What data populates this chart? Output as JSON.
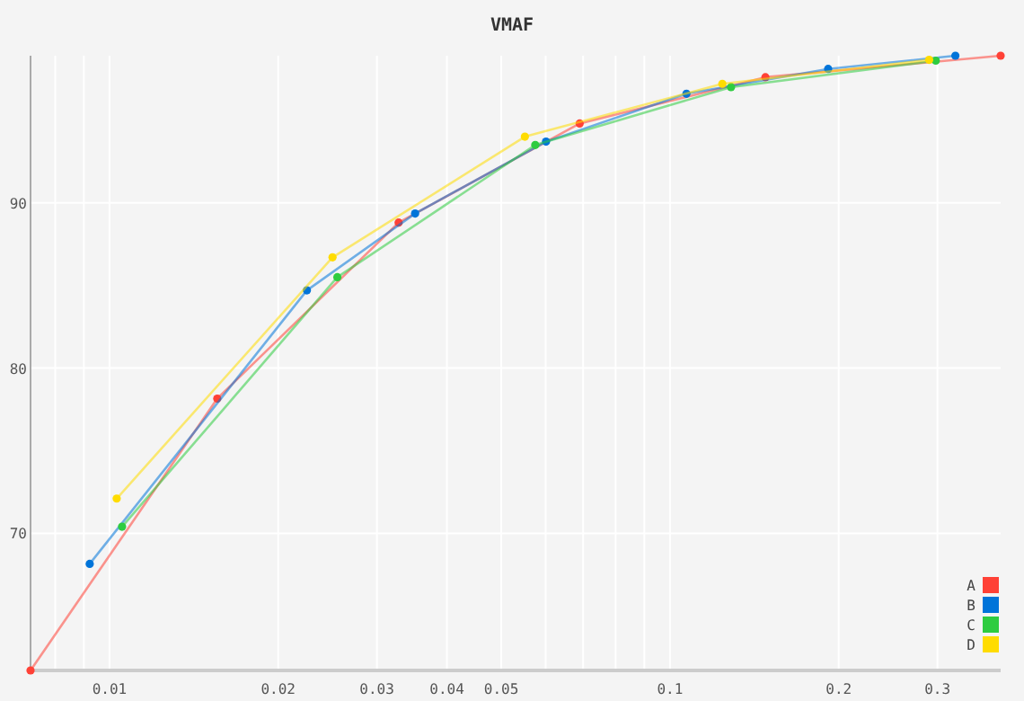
{
  "chart_data": {
    "type": "line",
    "title": "VMAF",
    "log": "x",
    "grid": true,
    "legend": "bottom right",
    "marker": "circle",
    "xlim": [
      0.00723,
      0.389
    ],
    "ylim": [
      61.7,
      98.9
    ],
    "xticks": [
      {
        "value": 0.008,
        "label": null
      },
      {
        "value": 0.009,
        "label": null
      },
      0.01,
      0.02,
      0.03,
      0.04,
      0.05,
      {
        "value": 0.06,
        "label": null
      },
      {
        "value": 0.07,
        "label": null
      },
      {
        "value": 0.08,
        "label": null
      },
      {
        "value": 0.09,
        "label": null
      },
      0.1,
      0.2,
      0.3
    ],
    "yticks": [
      70,
      80,
      90
    ],
    "series": [
      {
        "name": "A",
        "color": "#ff4136",
        "x": [
          0.00723,
          0.01557,
          0.0328,
          0.069,
          0.148,
          0.389
        ],
        "values": [
          61.7,
          78.15,
          88.8,
          94.8,
          97.6,
          98.9
        ]
      },
      {
        "name": "B",
        "color": "#0074d9",
        "x": [
          0.00922,
          0.0225,
          0.0351,
          0.0601,
          0.107,
          0.1915,
          0.323
        ],
        "values": [
          68.15,
          84.7,
          89.35,
          93.7,
          96.6,
          98.1,
          98.9
        ]
      },
      {
        "name": "C",
        "color": "#2ecc40",
        "x": [
          0.01053,
          0.0255,
          0.0575,
          0.1285,
          0.298
        ],
        "values": [
          70.4,
          85.5,
          93.5,
          97.0,
          98.6
        ]
      },
      {
        "name": "D",
        "color": "#ffdc00",
        "x": [
          0.0103,
          0.025,
          0.0551,
          0.124,
          0.29
        ],
        "values": [
          72.1,
          86.7,
          94.0,
          97.2,
          98.65
        ]
      }
    ]
  }
}
